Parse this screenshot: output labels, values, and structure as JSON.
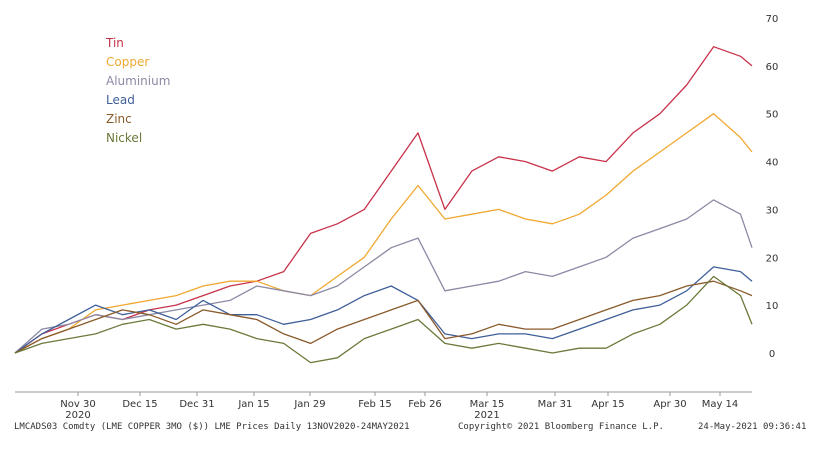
{
  "chart_data": {
    "type": "line",
    "title": "",
    "xlabel": "",
    "ylabel": "",
    "ylim": [
      -8,
      72
    ],
    "yticks": [
      0,
      10,
      20,
      30,
      40,
      50,
      60,
      70
    ],
    "x_tick_labels": [
      {
        "label": "Nov 30",
        "year": "2020"
      },
      {
        "label": "Dec 15",
        "year": ""
      },
      {
        "label": "Dec 31",
        "year": ""
      },
      {
        "label": "Jan 15",
        "year": ""
      },
      {
        "label": "Jan 29",
        "year": ""
      },
      {
        "label": "Feb 15",
        "year": ""
      },
      {
        "label": "Feb 26",
        "year": ""
      },
      {
        "label": "Mar 15",
        "year": "2021"
      },
      {
        "label": "Mar 31",
        "year": ""
      },
      {
        "label": "Apr 15",
        "year": ""
      },
      {
        "label": "Apr 30",
        "year": ""
      },
      {
        "label": "May 14",
        "year": ""
      }
    ],
    "x_dates": [
      "2020-11-13",
      "2020-11-20",
      "2020-11-27",
      "2020-12-04",
      "2020-12-11",
      "2020-12-18",
      "2020-12-25",
      "2021-01-01",
      "2021-01-08",
      "2021-01-15",
      "2021-01-22",
      "2021-01-29",
      "2021-02-05",
      "2021-02-12",
      "2021-02-19",
      "2021-02-26",
      "2021-03-05",
      "2021-03-12",
      "2021-03-19",
      "2021-03-26",
      "2021-04-02",
      "2021-04-09",
      "2021-04-16",
      "2021-04-23",
      "2021-04-30",
      "2021-05-07",
      "2021-05-14",
      "2021-05-21",
      "2021-05-24"
    ],
    "series": [
      {
        "name": "Tin",
        "color": "#c8324a",
        "values": [
          0,
          4,
          6,
          8,
          7,
          9,
          10,
          12,
          14,
          15,
          17,
          25,
          27,
          30,
          38,
          46,
          30,
          38,
          41,
          40,
          38,
          41,
          40,
          46,
          50,
          56,
          64,
          62,
          60
        ]
      },
      {
        "name": "Copper",
        "color": "#f0a830",
        "values": [
          0,
          3,
          5,
          9,
          10,
          11,
          12,
          14,
          15,
          15,
          13,
          12,
          16,
          20,
          28,
          35,
          28,
          29,
          30,
          28,
          27,
          29,
          33,
          38,
          42,
          46,
          50,
          45,
          42
        ]
      },
      {
        "name": "Aluminium",
        "color": "#8a8aa6",
        "values": [
          0,
          5,
          6,
          8,
          7,
          8,
          9,
          10,
          11,
          14,
          13,
          12,
          14,
          18,
          22,
          24,
          13,
          14,
          15,
          17,
          16,
          18,
          20,
          24,
          26,
          28,
          32,
          29,
          22
        ]
      },
      {
        "name": "Lead",
        "color": "#3f5f9a",
        "values": [
          0,
          4,
          7,
          10,
          8,
          9,
          7,
          11,
          8,
          8,
          6,
          7,
          9,
          12,
          14,
          11,
          4,
          3,
          4,
          4,
          3,
          5,
          7,
          9,
          10,
          13,
          18,
          17,
          15
        ]
      },
      {
        "name": "Zinc",
        "color": "#8a5a2a",
        "values": [
          0,
          3,
          5,
          7,
          9,
          8,
          6,
          9,
          8,
          7,
          4,
          2,
          5,
          7,
          9,
          11,
          3,
          4,
          6,
          5,
          5,
          7,
          9,
          11,
          12,
          14,
          15,
          13,
          12
        ]
      },
      {
        "name": "Nickel",
        "color": "#6a7a3a",
        "values": [
          0,
          2,
          3,
          4,
          6,
          7,
          5,
          6,
          5,
          3,
          2,
          -2,
          -1,
          3,
          5,
          7,
          2,
          1,
          2,
          1,
          0,
          1,
          1,
          4,
          6,
          10,
          16,
          12,
          6
        ]
      }
    ]
  },
  "footer": {
    "left": "LMCADS03 Comdty (LME COPPER   3MO ($)) LME Prices  Daily 13NOV2020-24MAY2021",
    "middle": "Copyright© 2021 Bloomberg Finance L.P.",
    "right": "24-May-2021 09:36:41"
  }
}
